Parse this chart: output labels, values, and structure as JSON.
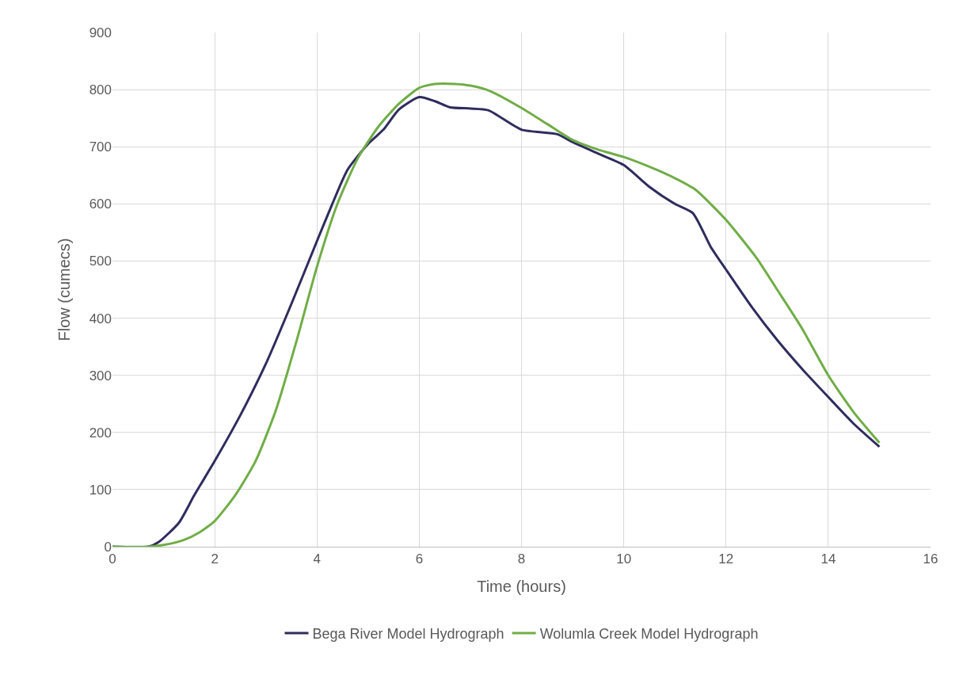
{
  "chart_data": {
    "type": "line",
    "xlabel": "Time (hours)",
    "ylabel": "Flow (cumecs)",
    "xlim": [
      0,
      16
    ],
    "xticks": [
      0,
      2,
      4,
      6,
      8,
      10,
      12,
      14,
      16
    ],
    "ylim": [
      0,
      900
    ],
    "yticks": [
      0,
      100,
      200,
      300,
      400,
      500,
      600,
      700,
      800,
      900
    ],
    "grid": true,
    "legend": "bottom",
    "marker": "none",
    "line_style": "solid",
    "series": [
      {
        "name": "Bega River Model Hydrograph",
        "color": "#2e2c5e",
        "x": [
          0,
          0.7,
          0.9,
          1.3,
          1.6,
          2,
          2.5,
          3,
          3.5,
          4,
          4.3,
          4.6,
          5,
          5.3,
          5.6,
          6,
          6.3,
          6.6,
          7,
          7.35,
          8,
          8.7,
          9,
          9.5,
          10,
          10.5,
          11,
          11.35,
          11.7,
          12,
          12.5,
          13,
          13.5,
          14,
          14.5,
          15
        ],
        "values": [
          0,
          0,
          8,
          42,
          90,
          150,
          230,
          320,
          425,
          535,
          600,
          660,
          705,
          730,
          765,
          787,
          780,
          769,
          767,
          764,
          730,
          722,
          708,
          688,
          668,
          630,
          600,
          584,
          525,
          485,
          420,
          362,
          310,
          262,
          215,
          175
        ]
      },
      {
        "name": "Wolumla Creek Model Hydrograph",
        "color": "#70ad47",
        "x": [
          0,
          0.7,
          1,
          1.4,
          1.7,
          2,
          2.4,
          2.8,
          3.2,
          3.6,
          4,
          4.4,
          4.8,
          5.2,
          5.6,
          6,
          6.3,
          6.7,
          7,
          7.4,
          8,
          8.5,
          9,
          9.5,
          10,
          10.5,
          11,
          11.4,
          12,
          12.6,
          13,
          13.5,
          14,
          14.5,
          15
        ],
        "values": [
          0,
          0,
          3,
          12,
          25,
          45,
          90,
          150,
          240,
          360,
          490,
          600,
          680,
          735,
          775,
          803,
          810,
          810,
          807,
          797,
          768,
          740,
          712,
          695,
          682,
          665,
          645,
          625,
          572,
          505,
          450,
          380,
          300,
          235,
          182
        ]
      }
    ]
  }
}
